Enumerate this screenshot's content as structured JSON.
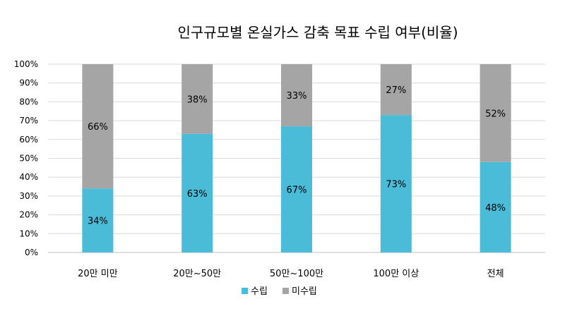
{
  "chart_data": {
    "type": "bar",
    "stacked": true,
    "percent": true,
    "title": "인구규모별 온실가스 감축 목표 수립 여부(비율)",
    "categories": [
      "20만 미만",
      "20만~50만",
      "50만~100만",
      "100만 이상",
      "전체"
    ],
    "series": [
      {
        "name": "수립",
        "color": "#4BBCD8",
        "values": [
          34,
          63,
          67,
          73,
          48
        ],
        "labels": [
          "34%",
          "63%",
          "67%",
          "73%",
          "48%"
        ]
      },
      {
        "name": "미수립",
        "color": "#A5A5A5",
        "values": [
          66,
          38,
          33,
          27,
          52
        ],
        "labels": [
          "66%",
          "38%",
          "33%",
          "27%",
          "52%"
        ]
      }
    ],
    "ylim": [
      0,
      100
    ],
    "yticks": [
      "0%",
      "10%",
      "20%",
      "30%",
      "40%",
      "50%",
      "60%",
      "70%",
      "80%",
      "90%",
      "100%"
    ],
    "grid": true,
    "legend_position": "bottom"
  }
}
